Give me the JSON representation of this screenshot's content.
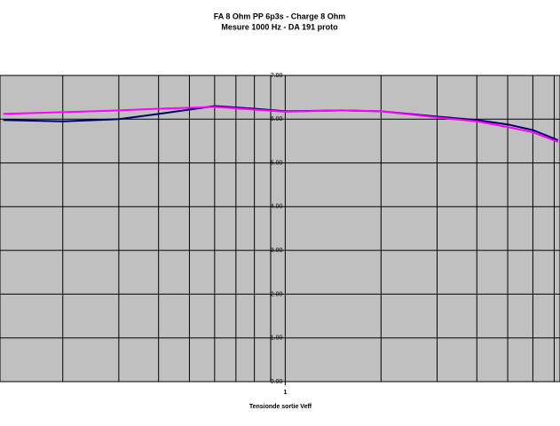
{
  "chart_data": {
    "type": "line",
    "title": "FA 8 Ohm  PP 6p3s  - Charge 8 Ohm",
    "subtitle": "Mesure 1000 Hz - DA 191 proto",
    "x_label": "Tensionde sortie Veff",
    "x": [
      0.13,
      0.2,
      0.3,
      0.4,
      0.6,
      0.8,
      1,
      1.5,
      2,
      3,
      4,
      5,
      6,
      7.2
    ],
    "series": [
      {
        "color": "#000066",
        "values": [
          5.98,
          5.95,
          6.0,
          6.12,
          6.3,
          6.24,
          6.18,
          6.2,
          6.18,
          6.06,
          5.98,
          5.88,
          5.75,
          5.52
        ]
      },
      {
        "color": "#ff00ff",
        "values": [
          6.12,
          6.16,
          6.2,
          6.24,
          6.28,
          6.22,
          6.17,
          6.2,
          6.18,
          6.04,
          5.95,
          5.82,
          5.7,
          5.48
        ]
      }
    ],
    "xlim": [
      0.127,
      7.3
    ],
    "xticks": [
      1
    ],
    "x_log": true,
    "ylim": [
      0,
      7
    ],
    "yticks": [
      {
        "value": 0,
        "label": "0.00"
      },
      {
        "value": 1,
        "label": "1.00"
      },
      {
        "value": 2,
        "label": "2.00"
      },
      {
        "value": 3,
        "label": "3.00"
      },
      {
        "value": 4,
        "label": "4.00"
      },
      {
        "value": 5,
        "label": "5.00"
      },
      {
        "value": 6,
        "label": "6.00"
      },
      {
        "value": 7,
        "label": "7.00"
      }
    ],
    "grid": true,
    "plot_background": "#c0c0c0"
  }
}
